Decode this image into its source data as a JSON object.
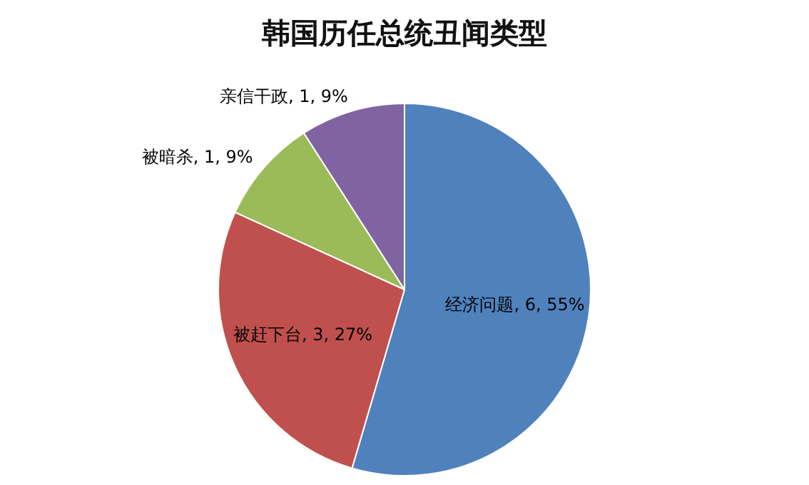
{
  "chart_data": {
    "type": "pie",
    "title": "韩国历任总统丑闻类型",
    "categories": [
      "经济问题",
      "被赶下台",
      "被暗杀",
      "亲信干政"
    ],
    "values": [
      6,
      3,
      1,
      1
    ],
    "colors": [
      "#4f81bd",
      "#c0504d",
      "#9bbb59",
      "#8064a2"
    ],
    "value_labels": [
      ", 6, 55%",
      ", 3, 27%",
      ", 1, 9%",
      ", 1, 9%"
    ],
    "legend": false
  }
}
